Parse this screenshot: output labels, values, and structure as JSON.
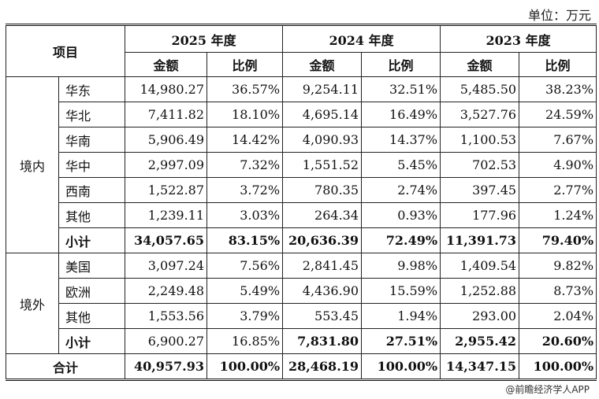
{
  "unit_label": "单位：万元",
  "header": {
    "item": "项目",
    "years": [
      "2025 年度",
      "2024 年度",
      "2023 年度"
    ],
    "amount": "金额",
    "ratio": "比例"
  },
  "domestic": {
    "label": "境内",
    "rows": [
      {
        "name": "华东",
        "v": [
          "14,980.27",
          "36.57%",
          "9,254.11",
          "32.51%",
          "5,485.50",
          "38.23%"
        ]
      },
      {
        "name": "华北",
        "v": [
          "7,411.82",
          "18.10%",
          "4,695.14",
          "16.49%",
          "3,527.76",
          "24.59%"
        ]
      },
      {
        "name": "华南",
        "v": [
          "5,906.49",
          "14.42%",
          "4,090.93",
          "14.37%",
          "1,100.53",
          "7.67%"
        ]
      },
      {
        "name": "华中",
        "v": [
          "2,997.09",
          "7.32%",
          "1,551.52",
          "5.45%",
          "702.53",
          "4.90%"
        ]
      },
      {
        "name": "西南",
        "v": [
          "1,522.87",
          "3.72%",
          "780.35",
          "2.74%",
          "397.45",
          "2.77%"
        ]
      },
      {
        "name": "其他",
        "v": [
          "1,239.11",
          "3.03%",
          "264.34",
          "0.93%",
          "177.96",
          "1.24%"
        ]
      }
    ],
    "subtotal": {
      "name": "小计",
      "v": [
        "34,057.65",
        "83.15%",
        "20,636.39",
        "72.49%",
        "11,391.73",
        "79.40%"
      ]
    }
  },
  "overseas": {
    "label": "境外",
    "rows": [
      {
        "name": "美国",
        "v": [
          "3,097.24",
          "7.56%",
          "2,841.45",
          "9.98%",
          "1,409.54",
          "9.82%"
        ]
      },
      {
        "name": "欧洲",
        "v": [
          "2,249.48",
          "5.49%",
          "4,436.90",
          "15.59%",
          "1,252.88",
          "8.73%"
        ]
      },
      {
        "name": "其他",
        "v": [
          "1,553.56",
          "3.79%",
          "553.45",
          "1.94%",
          "293.00",
          "2.04%"
        ]
      }
    ],
    "subtotal": {
      "name": "小计",
      "v": [
        "6,900.27",
        "16.85%",
        "7,831.80",
        "27.51%",
        "2,955.42",
        "20.60%"
      ]
    }
  },
  "total": {
    "name": "合计",
    "v": [
      "40,957.93",
      "100.00%",
      "28,468.19",
      "100.00%",
      "14,347.15",
      "100.00%"
    ]
  },
  "source": "@前瞻经济学人APP"
}
